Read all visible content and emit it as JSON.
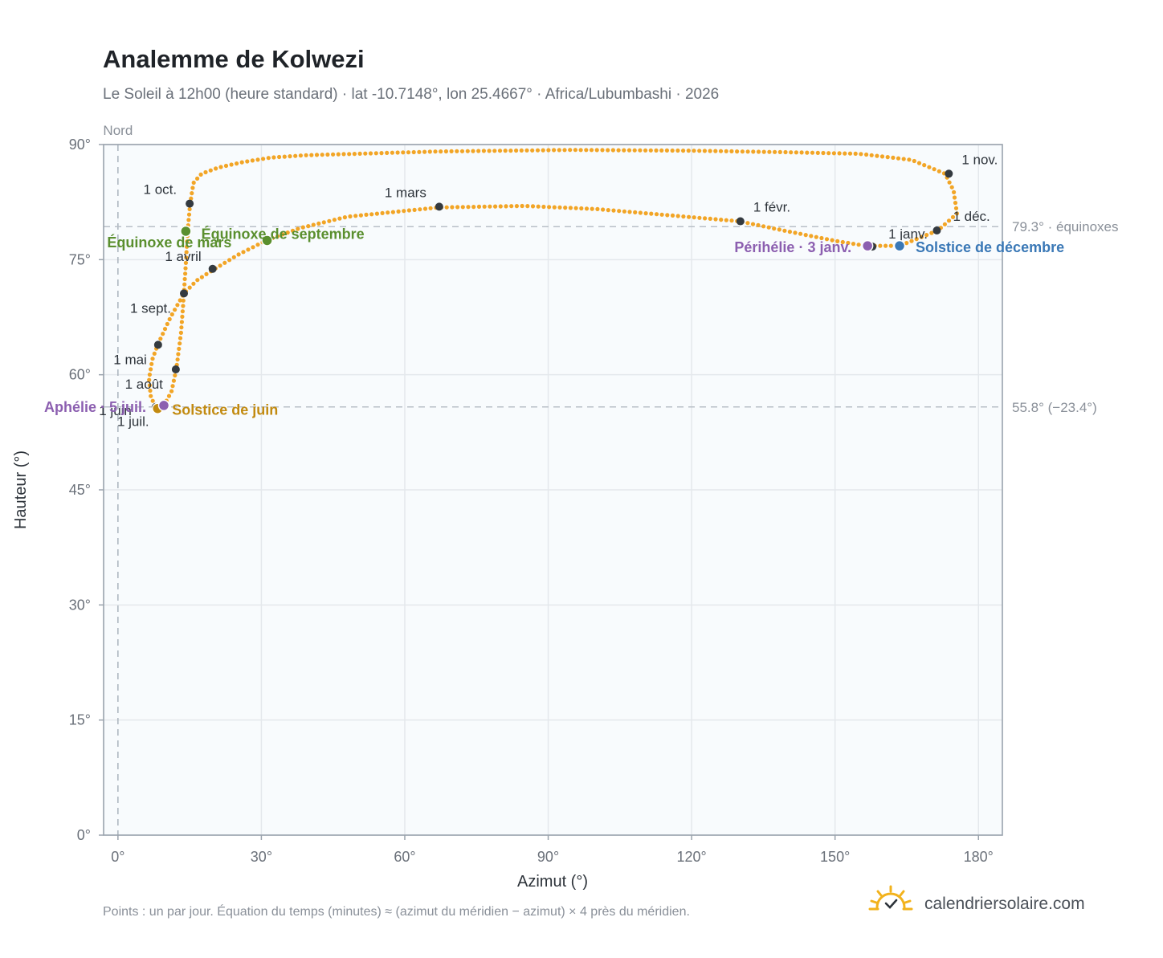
{
  "chart_data": {
    "type": "scatter",
    "title": "Analemme de Kolwezi",
    "subtitle": "Le Soleil à 12h00 (heure standard) · lat -10.7148°, lon 25.4667° · Africa/Lubumbashi · 2026",
    "xlabel": "Azimut (°)",
    "ylabel": "Hauteur (°)",
    "xlim": [
      -3,
      185
    ],
    "ylim": [
      0,
      90
    ],
    "x_ticks": [
      0,
      30,
      60,
      90,
      120,
      150,
      180
    ],
    "x_tick_labels": [
      "0°",
      "30°",
      "60°",
      "90°",
      "120°",
      "150°",
      "180°"
    ],
    "y_ticks": [
      0,
      15,
      30,
      45,
      60,
      75,
      90
    ],
    "y_tick_labels": [
      "0°",
      "15°",
      "30°",
      "45°",
      "60°",
      "75°",
      "90°"
    ],
    "grid": true,
    "series_color": "#f2a526",
    "north_line": {
      "x": 0,
      "label": "Nord"
    },
    "reference_lines": [
      {
        "y": 79.3,
        "label": "79.3° · équinoxes"
      },
      {
        "y": 55.8,
        "label": "55.8° (−23.4°)"
      }
    ],
    "path_nodes": [
      [
        150.5,
        77.4
      ],
      [
        156.5,
        76.8
      ],
      [
        163.5,
        76.8
      ],
      [
        171.5,
        78.8
      ],
      [
        175.5,
        81.0
      ],
      [
        174.8,
        84.0
      ],
      [
        173.0,
        86.2
      ],
      [
        166.0,
        88.0
      ],
      [
        155.0,
        88.8
      ],
      [
        140.0,
        89.0
      ],
      [
        120.0,
        89.2
      ],
      [
        95.0,
        89.3
      ],
      [
        67.0,
        89.1
      ],
      [
        50.0,
        88.8
      ],
      [
        39.0,
        88.6
      ],
      [
        32.0,
        88.3
      ],
      [
        26.0,
        87.7
      ],
      [
        21.0,
        87.0
      ],
      [
        17.5,
        86.2
      ],
      [
        15.8,
        85.0
      ],
      [
        15.1,
        82.3
      ],
      [
        14.6,
        78.8
      ],
      [
        14.2,
        74.5
      ],
      [
        13.8,
        70.6
      ],
      [
        13.2,
        65.5
      ],
      [
        12.2,
        60.7
      ],
      [
        11.2,
        57.8
      ],
      [
        9.6,
        56.0
      ],
      [
        8.2,
        55.6
      ],
      [
        6.9,
        57.0
      ],
      [
        6.5,
        59.5
      ],
      [
        7.2,
        62.0
      ],
      [
        8.3,
        63.9
      ],
      [
        11.0,
        67.5
      ],
      [
        13.8,
        70.6
      ],
      [
        16.5,
        72.3
      ],
      [
        20.0,
        73.7
      ],
      [
        25.0,
        75.6
      ],
      [
        31.0,
        77.5
      ],
      [
        38.0,
        79.1
      ],
      [
        48.0,
        80.6
      ],
      [
        67.0,
        81.8
      ],
      [
        85.0,
        82.0
      ],
      [
        100.0,
        81.6
      ],
      [
        115.0,
        80.8
      ],
      [
        130.0,
        80.0
      ],
      [
        140.0,
        78.7
      ],
      [
        150.5,
        77.4
      ]
    ],
    "month_markers": [
      {
        "label": "1 janv.",
        "x": 157.8,
        "y": 76.7,
        "dx": 20,
        "dy": -10,
        "anchor": "start"
      },
      {
        "label": "1 févr.",
        "x": 130.2,
        "y": 80.0,
        "dx": 16,
        "dy": -12,
        "anchor": "start"
      },
      {
        "label": "1 mars",
        "x": 67.2,
        "y": 81.9,
        "dx": -16,
        "dy": -12,
        "anchor": "end"
      },
      {
        "label": "1 avril",
        "x": 19.8,
        "y": 73.8,
        "dx": -14,
        "dy": -10,
        "anchor": "end"
      },
      {
        "label": "1 mai",
        "x": 8.4,
        "y": 63.9,
        "dx": -14,
        "dy": 24,
        "anchor": "end"
      },
      {
        "label": "1 juin",
        "x": 7.9,
        "y": 55.8,
        "dx": -30,
        "dy": 10,
        "anchor": "end"
      },
      {
        "label": "1 juil.",
        "x": 8.2,
        "y": 55.6,
        "dx": -10,
        "dy": 22,
        "anchor": "end"
      },
      {
        "label": "1 août",
        "x": 12.1,
        "y": 60.7,
        "dx": -16,
        "dy": 24,
        "anchor": "end"
      },
      {
        "label": "1 sept.",
        "x": 13.8,
        "y": 70.6,
        "dx": -16,
        "dy": 24,
        "anchor": "end"
      },
      {
        "label": "1 oct.",
        "x": 15.0,
        "y": 82.3,
        "dx": -16,
        "dy": -12,
        "anchor": "end"
      },
      {
        "label": "1 nov.",
        "x": 173.8,
        "y": 86.2,
        "dx": 16,
        "dy": -12,
        "anchor": "start"
      },
      {
        "label": "1 déc.",
        "x": 171.3,
        "y": 78.8,
        "dx": 20,
        "dy": -12,
        "anchor": "start"
      }
    ],
    "events": [
      {
        "label": "Équinoxe de mars",
        "x": 14.2,
        "y": 78.7,
        "color": "#5a8f2e",
        "dx": -98,
        "dy": 20,
        "anchor": "start"
      },
      {
        "label": "Équinoxe de septembre",
        "x": 31.2,
        "y": 77.5,
        "color": "#5a8f2e",
        "dx": -82,
        "dy": -2,
        "anchor": "start"
      },
      {
        "label": "Solstice de juin",
        "x": 8.3,
        "y": 55.6,
        "color": "#c28a10",
        "dx": 18,
        "dy": 8,
        "anchor": "start"
      },
      {
        "label": "Solstice de décembre",
        "x": 163.5,
        "y": 76.8,
        "color": "#3a78b6",
        "dx": 20,
        "dy": 8,
        "anchor": "start"
      },
      {
        "label": "Aphélie · 5 juil.",
        "x": 9.6,
        "y": 56.0,
        "color": "#8c5fb0",
        "dx": -22,
        "dy": 8,
        "anchor": "end"
      },
      {
        "label": "Périhélie · 3 janv.",
        "x": 156.8,
        "y": 76.8,
        "color": "#8c5fb0",
        "dx": -20,
        "dy": 8,
        "anchor": "end"
      }
    ],
    "footnote": "Points : un par jour. Équation du temps (minutes) ≈ (azimut du méridien − azimut) × 4 près du méridien.",
    "brand": "calendriersolaire.com"
  }
}
